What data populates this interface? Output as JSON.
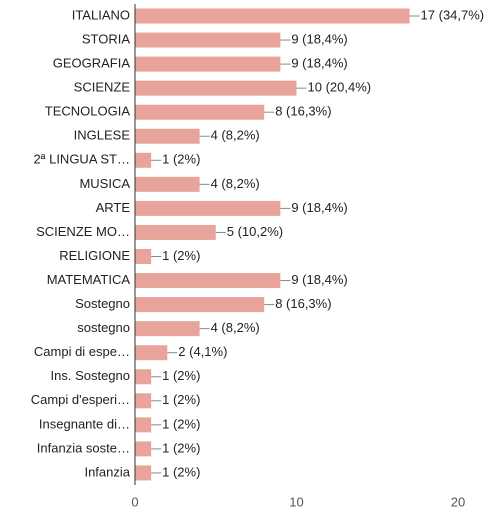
{
  "chart_data": {
    "type": "bar",
    "orientation": "horizontal",
    "categories": [
      "ITALIANO",
      "STORIA",
      "GEOGRAFIA",
      "SCIENZE",
      "TECNOLOGIA",
      "INGLESE",
      "2ª LINGUA ST…",
      "MUSICA",
      "ARTE",
      "SCIENZE MO…",
      "RELIGIONE",
      "MATEMATICA",
      "Sostegno",
      "sostegno",
      "Campi di espe…",
      "Ins. Sostegno",
      "Campi d'esperi…",
      "Insegnante di…",
      "Infanzia soste…",
      "Infanzia"
    ],
    "values": [
      17,
      9,
      9,
      10,
      8,
      4,
      1,
      4,
      9,
      5,
      1,
      9,
      8,
      4,
      2,
      1,
      1,
      1,
      1,
      1
    ],
    "value_labels": [
      "17 (34,7%)",
      "9 (18,4%)",
      "9 (18,4%)",
      "10 (20,4%)",
      "8 (16,3%)",
      "4 (8,2%)",
      "1 (2%)",
      "4 (8,2%)",
      "9 (18,4%)",
      "5 (10,2%)",
      "1 (2%)",
      "9 (18,4%)",
      "8 (16,3%)",
      "4 (8,2%)",
      "2 (4,1%)",
      "1 (2%)",
      "1 (2%)",
      "1 (2%)",
      "1 (2%)",
      "1 (2%)"
    ],
    "color": "#e8a39b",
    "xlim": [
      0,
      20
    ],
    "xticks": [
      0,
      10,
      20
    ],
    "grid": false
  }
}
